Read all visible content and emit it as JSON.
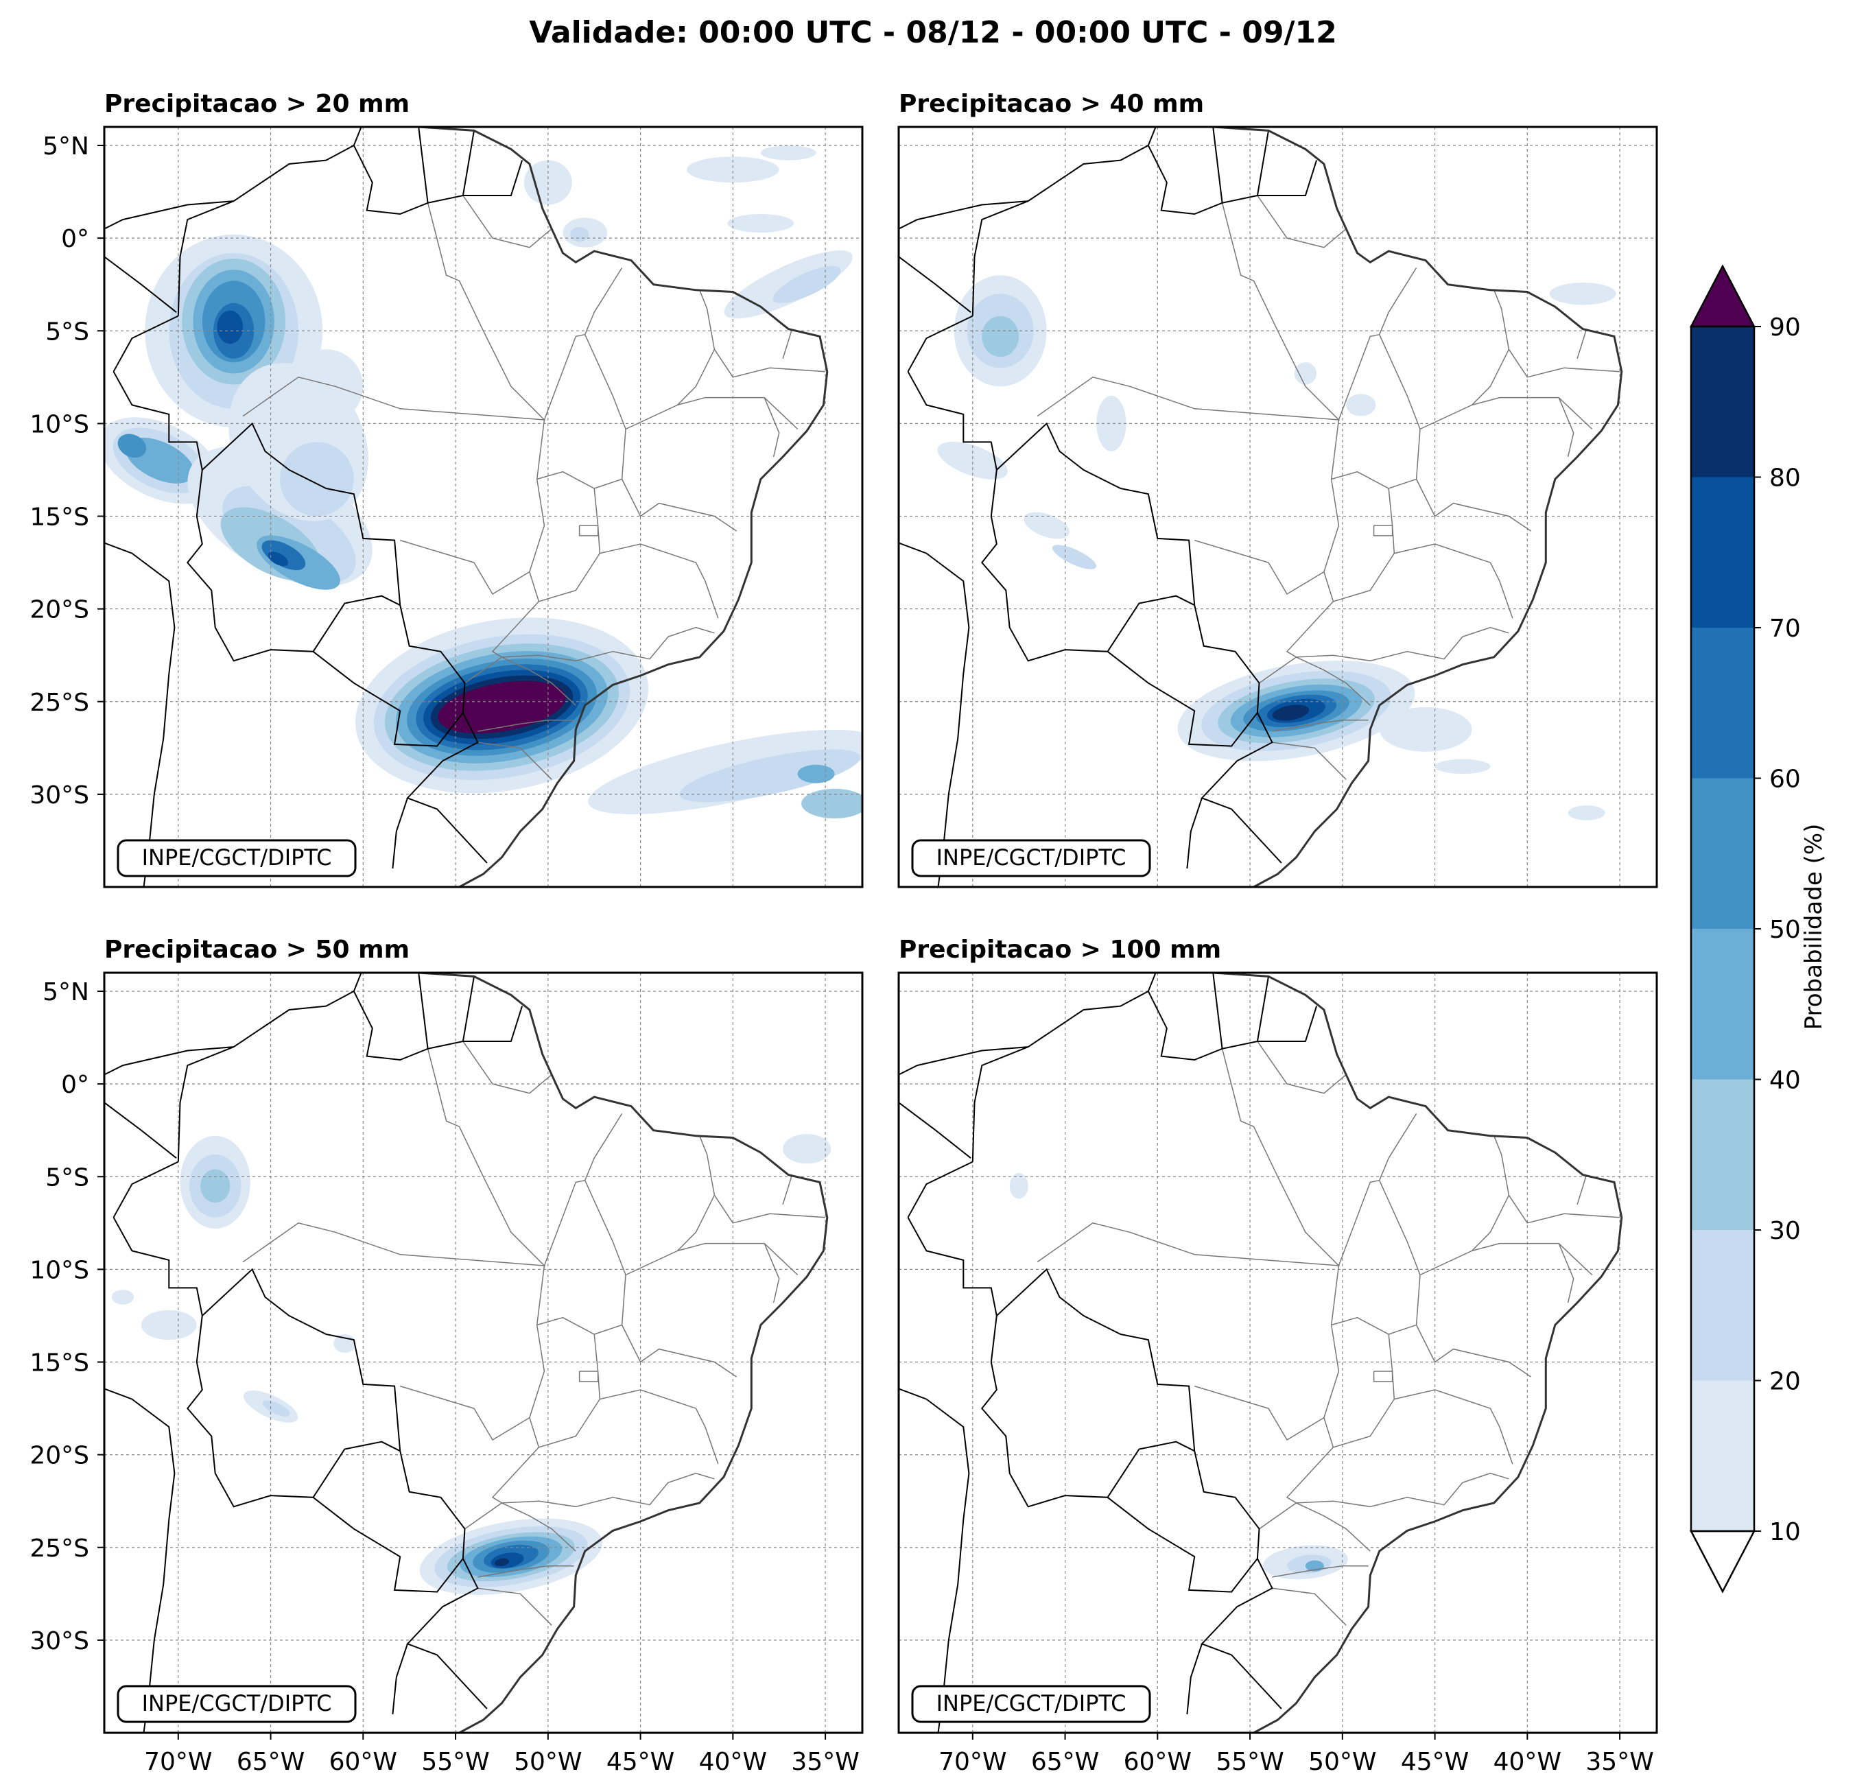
{
  "title": "Validade: 00:00 UTC - 08/12 - 00:00 UTC - 09/12",
  "credit": "INPE/CGCT/DIPTC",
  "panels": [
    {
      "title": "Precipitacao > 20 mm",
      "threshold_mm": 20
    },
    {
      "title": "Precipitacao > 40 mm",
      "threshold_mm": 40
    },
    {
      "title": "Precipitacao > 50 mm",
      "threshold_mm": 50
    },
    {
      "title": "Precipitacao > 100 mm",
      "threshold_mm": 100
    }
  ],
  "lat_labels": [
    "5°N",
    "0°",
    "5°S",
    "10°S",
    "15°S",
    "20°S",
    "25°S",
    "30°S"
  ],
  "lat_values": [
    5,
    0,
    -5,
    -10,
    -15,
    -20,
    -25,
    -30
  ],
  "lon_labels": [
    "70°W",
    "65°W",
    "60°W",
    "55°W",
    "50°W",
    "45°W",
    "40°W",
    "35°W"
  ],
  "lon_values": [
    -70,
    -65,
    -60,
    -55,
    -50,
    -45,
    -40,
    -35
  ],
  "extent": {
    "lon_min": -74,
    "lon_max": -33,
    "lat_min": -35,
    "lat_max": 6
  },
  "colorbar": {
    "label": "Probabilidade (%)",
    "ticks": [
      "10",
      "20",
      "30",
      "40",
      "50",
      "60",
      "70",
      "80",
      "90"
    ],
    "colors": [
      "#dde8f5",
      "#c6dbef",
      "#9ecae1",
      "#6baed6",
      "#4292c6",
      "#2171b5",
      "#08519c",
      "#08306b"
    ],
    "over_color": "#500050",
    "under_color": "#ffffff"
  }
}
